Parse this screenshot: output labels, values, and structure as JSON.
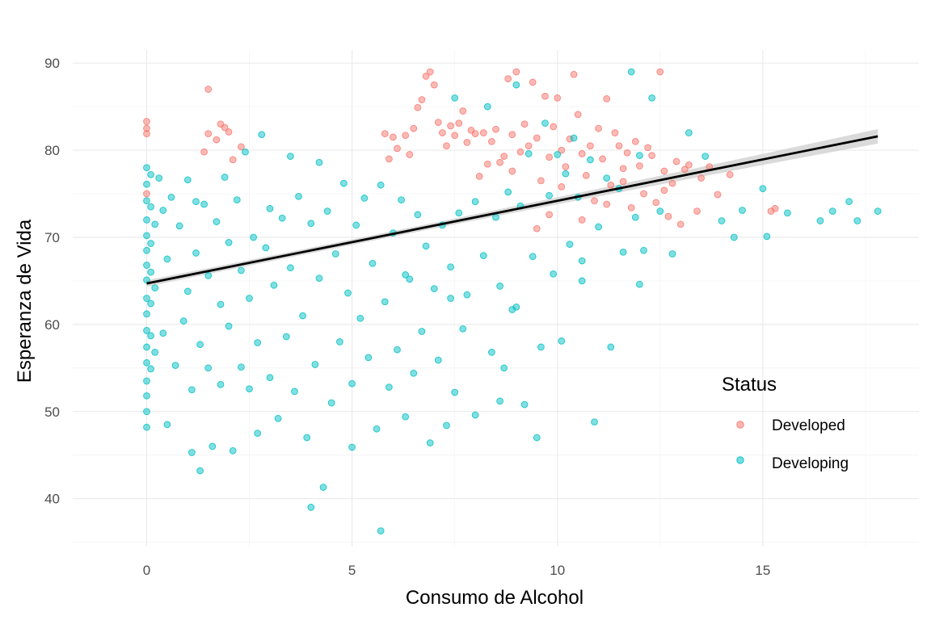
{
  "chart_data": {
    "type": "scatter",
    "xlabel": "Consumo de Alcohol",
    "ylabel": "Esperanza de Vida",
    "xlim": [
      -1.8,
      18.8
    ],
    "ylim": [
      34.5,
      91.5
    ],
    "x_ticks": [
      0,
      5,
      10,
      15
    ],
    "y_ticks": [
      40,
      50,
      60,
      70,
      80,
      90
    ],
    "x_tick_labels": [
      "0",
      "5",
      "10",
      "15"
    ],
    "y_tick_labels": [
      "40",
      "50",
      "60",
      "70",
      "80",
      "90"
    ],
    "grid": true,
    "legend": {
      "title": "Status",
      "placement": "right",
      "entries": [
        {
          "label": "Developed",
          "color": "#F8766D"
        },
        {
          "label": "Developing",
          "color": "#00BFC4"
        }
      ]
    },
    "series": [
      {
        "name": "Developed",
        "color": "#F8766D",
        "points": [
          [
            0.0,
            83.3
          ],
          [
            0.0,
            82.5
          ],
          [
            0.0,
            81.9
          ],
          [
            0.0,
            75.0
          ],
          [
            1.5,
            87.0
          ],
          [
            1.5,
            81.9
          ],
          [
            1.4,
            79.8
          ],
          [
            1.8,
            83.0
          ],
          [
            1.9,
            82.6
          ],
          [
            2.0,
            82.1
          ],
          [
            1.7,
            81.2
          ],
          [
            2.1,
            78.9
          ],
          [
            2.3,
            80.4
          ],
          [
            5.8,
            81.9
          ],
          [
            5.9,
            79.0
          ],
          [
            6.0,
            81.5
          ],
          [
            6.1,
            80.2
          ],
          [
            6.3,
            81.7
          ],
          [
            6.4,
            79.5
          ],
          [
            6.5,
            82.5
          ],
          [
            6.6,
            84.9
          ],
          [
            6.7,
            85.8
          ],
          [
            6.8,
            88.5
          ],
          [
            6.9,
            89.0
          ],
          [
            7.0,
            87.5
          ],
          [
            7.1,
            83.2
          ],
          [
            7.2,
            82.0
          ],
          [
            7.3,
            80.5
          ],
          [
            7.4,
            82.8
          ],
          [
            7.5,
            81.7
          ],
          [
            7.6,
            83.1
          ],
          [
            7.7,
            84.5
          ],
          [
            7.8,
            80.9
          ],
          [
            7.9,
            82.3
          ],
          [
            8.0,
            81.9
          ],
          [
            8.1,
            77.0
          ],
          [
            8.2,
            82.0
          ],
          [
            8.3,
            78.4
          ],
          [
            8.4,
            81.0
          ],
          [
            8.5,
            82.4
          ],
          [
            8.6,
            78.6
          ],
          [
            8.7,
            79.3
          ],
          [
            8.8,
            88.2
          ],
          [
            8.9,
            81.8
          ],
          [
            9.0,
            89.0
          ],
          [
            9.1,
            79.8
          ],
          [
            9.2,
            83.0
          ],
          [
            9.3,
            80.5
          ],
          [
            9.4,
            87.8
          ],
          [
            9.5,
            81.4
          ],
          [
            9.6,
            76.5
          ],
          [
            9.7,
            86.2
          ],
          [
            9.8,
            79.2
          ],
          [
            9.9,
            82.7
          ],
          [
            10.0,
            86.0
          ],
          [
            10.1,
            80.0
          ],
          [
            10.2,
            78.1
          ],
          [
            10.3,
            81.3
          ],
          [
            10.4,
            88.7
          ],
          [
            10.5,
            84.1
          ],
          [
            10.6,
            79.6
          ],
          [
            10.7,
            77.1
          ],
          [
            10.8,
            80.5
          ],
          [
            10.9,
            74.2
          ],
          [
            11.0,
            82.5
          ],
          [
            11.1,
            79.0
          ],
          [
            11.2,
            85.9
          ],
          [
            11.3,
            76.0
          ],
          [
            11.4,
            82.0
          ],
          [
            11.5,
            80.5
          ],
          [
            11.6,
            77.9
          ],
          [
            11.7,
            79.7
          ],
          [
            11.8,
            73.4
          ],
          [
            11.9,
            81.0
          ],
          [
            12.0,
            78.2
          ],
          [
            12.1,
            75.0
          ],
          [
            12.2,
            80.3
          ],
          [
            12.3,
            79.4
          ],
          [
            12.4,
            74.0
          ],
          [
            12.5,
            89.0
          ],
          [
            12.6,
            77.6
          ],
          [
            12.7,
            72.4
          ],
          [
            12.8,
            76.2
          ],
          [
            12.9,
            78.7
          ],
          [
            13.0,
            71.5
          ],
          [
            13.1,
            77.8
          ],
          [
            13.2,
            78.3
          ],
          [
            13.4,
            73.0
          ],
          [
            13.5,
            76.8
          ],
          [
            13.7,
            78.1
          ],
          [
            13.9,
            74.9
          ],
          [
            14.2,
            77.2
          ],
          [
            15.2,
            73.0
          ],
          [
            15.3,
            73.3
          ],
          [
            9.5,
            71.0
          ],
          [
            9.8,
            72.6
          ],
          [
            10.6,
            72.0
          ],
          [
            11.2,
            73.8
          ],
          [
            8.9,
            77.6
          ],
          [
            10.1,
            75.8
          ],
          [
            11.6,
            76.4
          ],
          [
            12.6,
            75.4
          ]
        ]
      },
      {
        "name": "Developing",
        "color": "#00BFC4",
        "points": [
          [
            0.0,
            78.0
          ],
          [
            0.0,
            76.1
          ],
          [
            0.0,
            74.2
          ],
          [
            0.0,
            72.0
          ],
          [
            0.0,
            70.2
          ],
          [
            0.0,
            68.5
          ],
          [
            0.0,
            66.8
          ],
          [
            0.0,
            65.1
          ],
          [
            0.0,
            63.0
          ],
          [
            0.0,
            61.2
          ],
          [
            0.0,
            59.3
          ],
          [
            0.0,
            57.4
          ],
          [
            0.0,
            55.6
          ],
          [
            0.0,
            53.5
          ],
          [
            0.0,
            51.8
          ],
          [
            0.0,
            50.0
          ],
          [
            0.0,
            48.2
          ],
          [
            0.1,
            77.2
          ],
          [
            0.1,
            73.5
          ],
          [
            0.1,
            69.3
          ],
          [
            0.1,
            66.0
          ],
          [
            0.1,
            62.4
          ],
          [
            0.1,
            58.7
          ],
          [
            0.1,
            54.9
          ],
          [
            0.2,
            71.5
          ],
          [
            0.2,
            64.2
          ],
          [
            0.2,
            56.8
          ],
          [
            0.3,
            76.8
          ],
          [
            0.4,
            73.1
          ],
          [
            0.4,
            59.0
          ],
          [
            0.5,
            67.5
          ],
          [
            0.5,
            48.5
          ],
          [
            0.6,
            74.6
          ],
          [
            0.7,
            55.3
          ],
          [
            0.8,
            71.3
          ],
          [
            0.9,
            60.4
          ],
          [
            1.0,
            76.6
          ],
          [
            1.0,
            63.8
          ],
          [
            1.1,
            52.5
          ],
          [
            1.1,
            45.3
          ],
          [
            1.2,
            74.1
          ],
          [
            1.2,
            68.2
          ],
          [
            1.3,
            57.7
          ],
          [
            1.3,
            43.2
          ],
          [
            1.4,
            73.8
          ],
          [
            1.5,
            65.6
          ],
          [
            1.5,
            55.0
          ],
          [
            1.6,
            46.0
          ],
          [
            1.7,
            71.8
          ],
          [
            1.8,
            62.3
          ],
          [
            1.8,
            53.1
          ],
          [
            1.9,
            76.9
          ],
          [
            2.0,
            69.4
          ],
          [
            2.0,
            59.8
          ],
          [
            2.1,
            45.5
          ],
          [
            2.2,
            74.3
          ],
          [
            2.3,
            66.2
          ],
          [
            2.3,
            55.1
          ],
          [
            2.4,
            79.8
          ],
          [
            2.5,
            63.0
          ],
          [
            2.5,
            52.6
          ],
          [
            2.6,
            70.0
          ],
          [
            2.7,
            57.9
          ],
          [
            2.7,
            47.5
          ],
          [
            2.8,
            81.8
          ],
          [
            2.9,
            68.8
          ],
          [
            3.0,
            73.3
          ],
          [
            3.0,
            53.9
          ],
          [
            3.1,
            64.5
          ],
          [
            3.2,
            49.2
          ],
          [
            3.3,
            72.2
          ],
          [
            3.4,
            58.6
          ],
          [
            3.5,
            79.3
          ],
          [
            3.5,
            66.5
          ],
          [
            3.6,
            52.3
          ],
          [
            3.7,
            74.7
          ],
          [
            3.8,
            61.0
          ],
          [
            3.9,
            47.0
          ],
          [
            4.0,
            39.0
          ],
          [
            4.0,
            71.6
          ],
          [
            4.1,
            55.4
          ],
          [
            4.2,
            78.6
          ],
          [
            4.2,
            65.3
          ],
          [
            4.3,
            41.3
          ],
          [
            4.4,
            73.0
          ],
          [
            4.5,
            51.0
          ],
          [
            4.6,
            68.1
          ],
          [
            4.7,
            58.0
          ],
          [
            4.8,
            76.2
          ],
          [
            4.9,
            63.6
          ],
          [
            5.0,
            53.2
          ],
          [
            5.0,
            45.9
          ],
          [
            5.1,
            71.4
          ],
          [
            5.2,
            60.7
          ],
          [
            5.3,
            74.5
          ],
          [
            5.4,
            56.2
          ],
          [
            5.5,
            67.0
          ],
          [
            5.6,
            48.0
          ],
          [
            5.7,
            76.0
          ],
          [
            5.7,
            36.3
          ],
          [
            5.8,
            62.6
          ],
          [
            5.9,
            52.8
          ],
          [
            6.0,
            70.5
          ],
          [
            6.1,
            57.1
          ],
          [
            6.2,
            74.3
          ],
          [
            6.3,
            49.4
          ],
          [
            6.4,
            65.2
          ],
          [
            6.5,
            54.4
          ],
          [
            6.6,
            72.6
          ],
          [
            6.7,
            59.2
          ],
          [
            6.8,
            69.0
          ],
          [
            6.9,
            46.4
          ],
          [
            7.0,
            64.1
          ],
          [
            7.1,
            55.9
          ],
          [
            7.2,
            71.4
          ],
          [
            7.3,
            48.4
          ],
          [
            7.4,
            66.6
          ],
          [
            7.5,
            86.0
          ],
          [
            7.5,
            52.2
          ],
          [
            7.6,
            72.8
          ],
          [
            7.7,
            59.5
          ],
          [
            7.8,
            63.4
          ],
          [
            8.0,
            74.1
          ],
          [
            8.0,
            49.6
          ],
          [
            8.2,
            67.9
          ],
          [
            8.3,
            85.0
          ],
          [
            8.4,
            56.8
          ],
          [
            8.5,
            72.3
          ],
          [
            8.6,
            64.4
          ],
          [
            8.7,
            55.0
          ],
          [
            8.8,
            75.2
          ],
          [
            8.9,
            61.7
          ],
          [
            9.0,
            87.5
          ],
          [
            9.1,
            73.6
          ],
          [
            9.2,
            50.8
          ],
          [
            9.3,
            79.6
          ],
          [
            9.4,
            67.8
          ],
          [
            9.5,
            47.0
          ],
          [
            9.6,
            57.4
          ],
          [
            9.7,
            83.1
          ],
          [
            9.8,
            74.8
          ],
          [
            9.9,
            65.8
          ],
          [
            10.0,
            79.5
          ],
          [
            10.1,
            58.1
          ],
          [
            10.2,
            77.3
          ],
          [
            10.3,
            69.2
          ],
          [
            10.4,
            81.4
          ],
          [
            10.5,
            74.6
          ],
          [
            10.6,
            65.0
          ],
          [
            10.8,
            78.9
          ],
          [
            10.9,
            48.8
          ],
          [
            11.0,
            71.2
          ],
          [
            11.2,
            76.8
          ],
          [
            11.3,
            57.4
          ],
          [
            11.5,
            75.6
          ],
          [
            11.6,
            68.3
          ],
          [
            11.8,
            89.0
          ],
          [
            11.9,
            72.3
          ],
          [
            12.0,
            79.4
          ],
          [
            12.1,
            68.5
          ],
          [
            12.3,
            86.0
          ],
          [
            12.5,
            73.0
          ],
          [
            12.8,
            68.1
          ],
          [
            13.2,
            82.0
          ],
          [
            13.6,
            79.3
          ],
          [
            14.0,
            71.9
          ],
          [
            14.3,
            70.0
          ],
          [
            14.5,
            73.1
          ],
          [
            15.0,
            75.6
          ],
          [
            15.1,
            70.1
          ],
          [
            15.6,
            72.8
          ],
          [
            16.4,
            71.9
          ],
          [
            16.7,
            73.0
          ],
          [
            17.1,
            74.1
          ],
          [
            17.3,
            71.9
          ],
          [
            17.8,
            73.0
          ],
          [
            12.0,
            64.6
          ],
          [
            10.6,
            67.3
          ],
          [
            9.0,
            62.0
          ],
          [
            8.6,
            51.2
          ],
          [
            7.4,
            63.0
          ],
          [
            6.3,
            65.7
          ]
        ]
      }
    ],
    "trend_line": {
      "x": [
        0,
        17.8
      ],
      "y": [
        64.7,
        81.6
      ],
      "color": "#000000",
      "band_color": "#d3d3d3"
    }
  }
}
